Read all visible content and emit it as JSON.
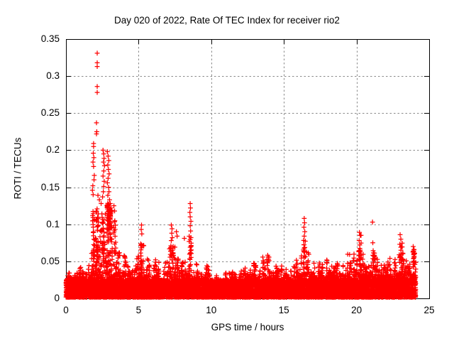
{
  "chart_data": {
    "type": "scatter",
    "title": "Day 020 of 2022, Rate Of TEC Index for receiver rio2",
    "xlabel": "GPS time / hours",
    "ylabel": "ROTI / TECUs",
    "xlim": [
      0,
      25
    ],
    "ylim": [
      0,
      0.35
    ],
    "xticks": [
      0,
      5,
      10,
      15,
      20,
      25
    ],
    "xtick_labels": [
      "0",
      "5",
      "10",
      "15",
      "20",
      "25"
    ],
    "yticks": [
      0,
      0.05,
      0.1,
      0.15,
      0.2,
      0.25,
      0.3,
      0.35
    ],
    "ytick_labels": [
      "0",
      "0.05",
      "0.1",
      "0.15",
      "0.2",
      "0.25",
      "0.3",
      "0.35"
    ],
    "grid": true,
    "legend": "none",
    "marker": "plus",
    "marker_color": "#ff0000",
    "grid_color": "#8a8a8a",
    "axis_color": "#000000",
    "data_x_range": [
      0,
      24
    ],
    "envelope": [
      [
        0,
        0.048
      ],
      [
        0.5,
        0.042
      ],
      [
        1,
        0.045
      ],
      [
        1.5,
        0.06
      ],
      [
        1.8,
        0.095
      ],
      [
        2,
        0.12
      ],
      [
        2.3,
        0.125
      ],
      [
        2.6,
        0.13
      ],
      [
        3,
        0.13
      ],
      [
        3.3,
        0.11
      ],
      [
        3.6,
        0.075
      ],
      [
        4,
        0.06
      ],
      [
        4.5,
        0.052
      ],
      [
        4.9,
        0.06
      ],
      [
        5.2,
        0.1
      ],
      [
        5.5,
        0.068
      ],
      [
        6,
        0.06
      ],
      [
        6.5,
        0.05
      ],
      [
        7,
        0.06
      ],
      [
        7.3,
        0.1
      ],
      [
        7.65,
        0.09
      ],
      [
        8,
        0.065
      ],
      [
        8.3,
        0.055
      ],
      [
        8.55,
        0.125
      ],
      [
        8.8,
        0.06
      ],
      [
        9.5,
        0.048
      ],
      [
        10,
        0.042
      ],
      [
        11,
        0.04
      ],
      [
        12,
        0.04
      ],
      [
        12.5,
        0.048
      ],
      [
        13,
        0.062
      ],
      [
        13.5,
        0.06
      ],
      [
        14,
        0.068
      ],
      [
        14.5,
        0.062
      ],
      [
        15,
        0.055
      ],
      [
        15.5,
        0.05
      ],
      [
        16,
        0.055
      ],
      [
        16.4,
        0.105
      ],
      [
        16.7,
        0.065
      ],
      [
        17,
        0.05
      ],
      [
        17.5,
        0.052
      ],
      [
        18,
        0.058
      ],
      [
        18.5,
        0.052
      ],
      [
        19,
        0.06
      ],
      [
        19.5,
        0.065
      ],
      [
        20,
        0.078
      ],
      [
        20.3,
        0.088
      ],
      [
        20.6,
        0.06
      ],
      [
        21,
        0.072
      ],
      [
        21.3,
        0.078
      ],
      [
        21.6,
        0.055
      ],
      [
        22,
        0.058
      ],
      [
        22.5,
        0.065
      ],
      [
        23,
        0.085
      ],
      [
        23.5,
        0.068
      ],
      [
        23.9,
        0.072
      ],
      [
        24,
        0.068
      ]
    ],
    "dense_columns": [
      {
        "x": 1.9,
        "ymin": 0.05,
        "ymax": 0.12,
        "n": 25
      },
      {
        "x": 2.15,
        "ymin": 0.05,
        "ymax": 0.125,
        "n": 30
      },
      {
        "x": 2.55,
        "ymin": 0.06,
        "ymax": 0.115,
        "n": 22
      },
      {
        "x": 2.9,
        "ymin": 0.075,
        "ymax": 0.13,
        "n": 45
      },
      {
        "x": 3.08,
        "ymin": 0.07,
        "ymax": 0.12,
        "n": 25
      },
      {
        "x": 3.35,
        "ymin": 0.06,
        "ymax": 0.105,
        "n": 15
      },
      {
        "x": 5.2,
        "ymin": 0.045,
        "ymax": 0.08,
        "n": 12
      },
      {
        "x": 7.3,
        "ymin": 0.045,
        "ymax": 0.08,
        "n": 12
      },
      {
        "x": 8.55,
        "ymin": 0.05,
        "ymax": 0.095,
        "n": 16
      },
      {
        "x": 13.0,
        "ymin": 0.038,
        "ymax": 0.058,
        "n": 8
      },
      {
        "x": 13.9,
        "ymin": 0.04,
        "ymax": 0.063,
        "n": 10
      },
      {
        "x": 16.4,
        "ymin": 0.05,
        "ymax": 0.082,
        "n": 14
      },
      {
        "x": 20.2,
        "ymin": 0.042,
        "ymax": 0.068,
        "n": 12
      },
      {
        "x": 21.2,
        "ymin": 0.04,
        "ymax": 0.065,
        "n": 8
      },
      {
        "x": 23.0,
        "ymin": 0.04,
        "ymax": 0.07,
        "n": 10
      },
      {
        "x": 23.95,
        "ymin": 0.04,
        "ymax": 0.066,
        "n": 20
      }
    ],
    "outliers": [
      [
        2.15,
        0.331
      ],
      [
        2.15,
        0.318
      ],
      [
        2.15,
        0.313
      ],
      [
        2.15,
        0.286
      ],
      [
        2.15,
        0.278
      ],
      [
        2.1,
        0.237
      ],
      [
        2.12,
        0.225
      ],
      [
        2.1,
        0.222
      ],
      [
        1.9,
        0.209
      ],
      [
        1.9,
        0.205
      ],
      [
        1.88,
        0.196
      ],
      [
        1.92,
        0.19
      ],
      [
        1.86,
        0.184
      ],
      [
        1.9,
        0.178
      ],
      [
        1.95,
        0.166
      ],
      [
        1.93,
        0.16
      ],
      [
        1.85,
        0.152
      ],
      [
        1.82,
        0.146
      ],
      [
        1.87,
        0.14
      ],
      [
        2.55,
        0.2
      ],
      [
        2.6,
        0.195
      ],
      [
        2.62,
        0.189
      ],
      [
        2.58,
        0.184
      ],
      [
        2.65,
        0.179
      ],
      [
        2.6,
        0.172
      ],
      [
        2.55,
        0.165
      ],
      [
        2.63,
        0.158
      ],
      [
        2.6,
        0.151
      ],
      [
        2.57,
        0.144
      ],
      [
        2.52,
        0.137
      ],
      [
        2.85,
        0.198
      ],
      [
        2.9,
        0.192
      ],
      [
        2.95,
        0.186
      ],
      [
        2.88,
        0.18
      ],
      [
        2.92,
        0.174
      ],
      [
        2.97,
        0.168
      ],
      [
        2.9,
        0.162
      ],
      [
        2.85,
        0.156
      ],
      [
        2.93,
        0.15
      ],
      [
        2.96,
        0.144
      ],
      [
        2.88,
        0.139
      ],
      [
        3.0,
        0.133
      ],
      [
        3.05,
        0.128
      ],
      [
        3.1,
        0.122
      ],
      [
        3.3,
        0.125
      ],
      [
        3.35,
        0.118
      ],
      [
        2.2,
        0.139
      ],
      [
        2.3,
        0.133
      ],
      [
        2.42,
        0.128
      ],
      [
        5.2,
        0.099
      ],
      [
        5.18,
        0.093
      ],
      [
        5.22,
        0.087
      ],
      [
        7.25,
        0.099
      ],
      [
        7.3,
        0.094
      ],
      [
        7.28,
        0.088
      ],
      [
        7.32,
        0.082
      ],
      [
        7.6,
        0.09
      ],
      [
        7.65,
        0.084
      ],
      [
        8.15,
        0.081
      ],
      [
        8.55,
        0.128
      ],
      [
        8.57,
        0.122
      ],
      [
        8.53,
        0.116
      ],
      [
        8.55,
        0.11
      ],
      [
        8.6,
        0.104
      ],
      [
        8.55,
        0.098
      ],
      [
        8.58,
        0.091
      ],
      [
        8.6,
        0.082
      ],
      [
        16.4,
        0.108
      ],
      [
        16.42,
        0.102
      ],
      [
        16.38,
        0.096
      ],
      [
        16.44,
        0.09
      ],
      [
        16.4,
        0.084
      ],
      [
        20.2,
        0.089
      ],
      [
        20.25,
        0.085
      ],
      [
        20.18,
        0.078
      ],
      [
        20.22,
        0.072
      ],
      [
        21.1,
        0.103
      ],
      [
        21.12,
        0.075
      ],
      [
        23.0,
        0.086
      ],
      [
        23.05,
        0.08
      ],
      [
        22.98,
        0.073
      ],
      [
        23.9,
        0.07
      ],
      [
        23.95,
        0.066
      ],
      [
        24.0,
        0.061
      ]
    ]
  }
}
